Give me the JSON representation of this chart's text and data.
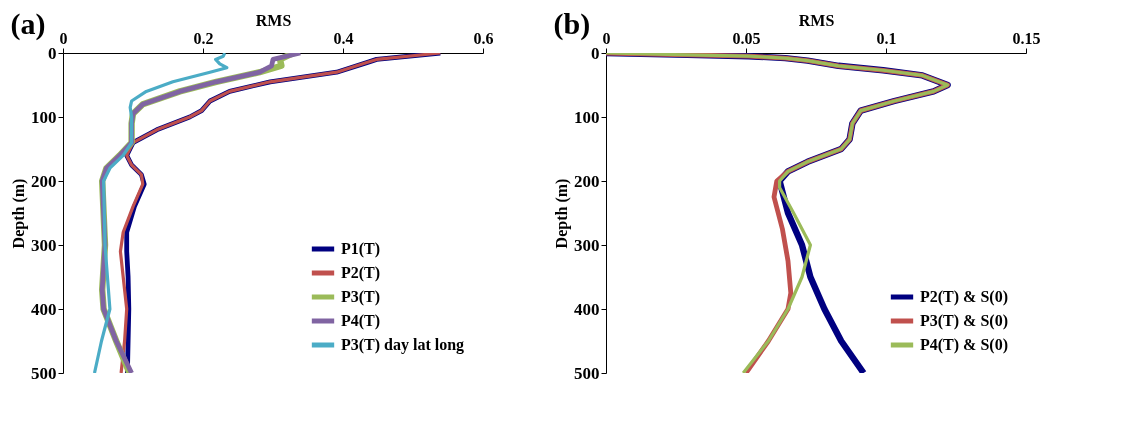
{
  "chart_data": [
    {
      "type": "line",
      "orientation": "horizontal",
      "title": "(a)",
      "xlabel": "RMS",
      "ylabel": "Depth (m)",
      "xlim": [
        0,
        0.6
      ],
      "xticks": [
        0,
        0.2,
        0.4,
        0.6
      ],
      "ylim": [
        500,
        0
      ],
      "yticks": [
        0,
        100,
        200,
        300,
        400,
        500
      ],
      "grid": false,
      "legend": "bottom right",
      "series": [
        {
          "name": "P1(T)",
          "color": "#000080",
          "values": [
            0.539,
            0.448,
            0.434,
            0.391,
            0.296,
            0.238,
            0.21,
            0.198,
            0.181,
            0.134,
            0.1,
            0.091,
            0.098,
            0.112,
            0.116,
            0.102,
            0.091,
            0.091,
            0.093,
            0.094,
            0.093,
            0.092
          ],
          "x": [
            0,
            10,
            15,
            30,
            45,
            60,
            75,
            90,
            100,
            120,
            140,
            160,
            175,
            190,
            205,
            240,
            280,
            310,
            350,
            400,
            450,
            500
          ]
        },
        {
          "name": "P2(T)",
          "color": "#c0504d",
          "values": [
            0.539,
            0.448,
            0.434,
            0.391,
            0.296,
            0.238,
            0.21,
            0.198,
            0.181,
            0.134,
            0.1,
            0.091,
            0.098,
            0.112,
            0.114,
            0.1,
            0.086,
            0.082,
            0.086,
            0.091,
            0.088,
            0.083
          ],
          "x": [
            0,
            10,
            15,
            30,
            45,
            60,
            75,
            90,
            100,
            120,
            140,
            160,
            175,
            190,
            205,
            240,
            280,
            310,
            350,
            400,
            450,
            500
          ]
        },
        {
          "name": "P3(T)",
          "color": "#9bbb59",
          "values": [
            0.329,
            0.31,
            0.312,
            0.281,
            0.219,
            0.167,
            0.114,
            0.1,
            0.098,
            0.098,
            0.081,
            0.062,
            0.056,
            0.06,
            0.056,
            0.058,
            0.076,
            0.095
          ],
          "x": [
            0,
            10,
            20,
            30,
            45,
            60,
            80,
            95,
            110,
            140,
            160,
            180,
            200,
            300,
            370,
            400,
            450,
            500
          ]
        },
        {
          "name": "P4(T)",
          "color": "#8064a2",
          "values": [
            0.339,
            0.3,
            0.298,
            0.281,
            0.219,
            0.167,
            0.114,
            0.1,
            0.098,
            0.098,
            0.081,
            0.062,
            0.056,
            0.06,
            0.056,
            0.058,
            0.076,
            0.098
          ],
          "x": [
            0,
            10,
            20,
            30,
            45,
            60,
            80,
            95,
            110,
            140,
            160,
            180,
            200,
            300,
            370,
            400,
            450,
            500
          ]
        },
        {
          "name": "P3(T) day lat long",
          "color": "#4bacc6",
          "values": [
            0.231,
            0.229,
            0.218,
            0.224,
            0.234,
            0.21,
            0.157,
            0.119,
            0.098,
            0.096,
            0.098,
            0.098,
            0.086,
            0.067,
            0.058,
            0.06,
            0.067,
            0.055,
            0.045
          ],
          "x": [
            0,
            5,
            10,
            17,
            23,
            30,
            45,
            60,
            75,
            85,
            100,
            140,
            160,
            180,
            200,
            300,
            400,
            450,
            500
          ]
        }
      ]
    },
    {
      "type": "line",
      "orientation": "horizontal",
      "title": "(b)",
      "xlabel": "RMS",
      "ylabel": "Depth (m)",
      "xlim": [
        0,
        0.15
      ],
      "xticks": [
        0,
        0.05,
        0.1,
        0.15
      ],
      "ylim": [
        500,
        0
      ],
      "yticks": [
        0,
        100,
        200,
        300,
        400,
        500
      ],
      "grid": false,
      "legend": "bottom right",
      "series": [
        {
          "name": "P2(T) & S(0)",
          "color": "#000080",
          "values": [
            0,
            0.029,
            0.051,
            0.064,
            0.072,
            0.083,
            0.099,
            0.113,
            0.122,
            0.117,
            0.103,
            0.091,
            0.088,
            0.087,
            0.084,
            0.072,
            0.065,
            0.062,
            0.065,
            0.07,
            0.073,
            0.078,
            0.084,
            0.092
          ],
          "x": [
            0,
            3,
            5,
            8,
            12,
            20,
            27,
            35,
            50,
            60,
            75,
            90,
            110,
            135,
            150,
            170,
            185,
            200,
            250,
            300,
            350,
            400,
            450,
            500
          ]
        },
        {
          "name": "P3(T) & S(0)",
          "color": "#c0504d",
          "values": [
            0,
            0.029,
            0.051,
            0.064,
            0.072,
            0.083,
            0.099,
            0.113,
            0.122,
            0.117,
            0.103,
            0.091,
            0.088,
            0.087,
            0.084,
            0.072,
            0.065,
            0.061,
            0.06,
            0.063,
            0.065,
            0.066,
            0.065,
            0.058,
            0.05
          ],
          "x": [
            0,
            3,
            5,
            8,
            12,
            20,
            27,
            35,
            50,
            60,
            75,
            90,
            110,
            135,
            150,
            170,
            185,
            200,
            225,
            275,
            325,
            375,
            400,
            450,
            500
          ]
        },
        {
          "name": "P4(T) & S(0)",
          "color": "#9bbb59",
          "values": [
            0,
            0.029,
            0.051,
            0.064,
            0.072,
            0.083,
            0.099,
            0.113,
            0.122,
            0.117,
            0.103,
            0.091,
            0.088,
            0.087,
            0.084,
            0.072,
            0.065,
            0.062,
            0.062,
            0.067,
            0.073,
            0.07,
            0.065,
            0.058,
            0.049
          ],
          "x": [
            0,
            3,
            5,
            8,
            12,
            20,
            27,
            35,
            50,
            60,
            75,
            90,
            110,
            135,
            150,
            170,
            185,
            200,
            210,
            250,
            300,
            350,
            400,
            450,
            500
          ]
        }
      ]
    }
  ]
}
